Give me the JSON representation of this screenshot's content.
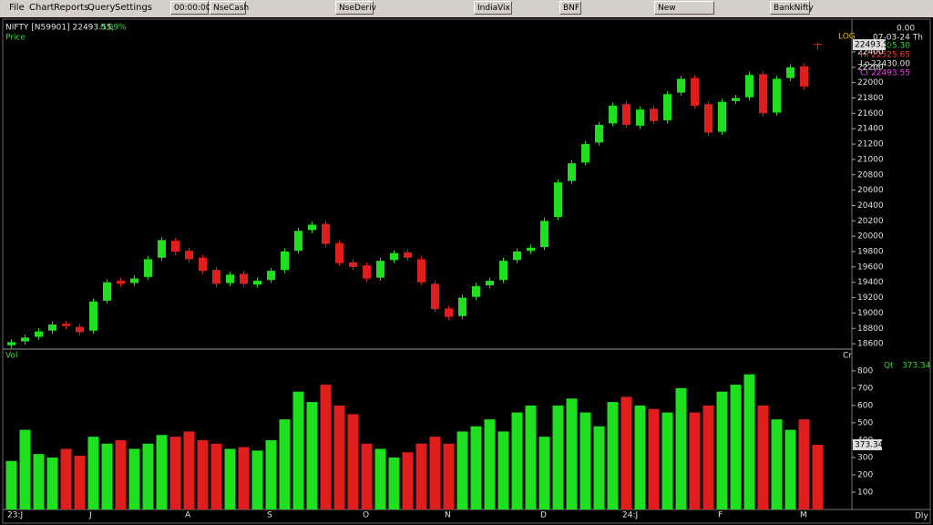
{
  "menu": [
    "File",
    "Chart",
    "Reports",
    "Query",
    "Settings"
  ],
  "toolbar": [
    "00:00:00",
    "NseCash",
    "NseDeriv",
    "IndiaVix",
    "BNF",
    "New High/Low",
    "BankNifty"
  ],
  "chart_data": {
    "type": "candlestick",
    "symbol_text": "NIFTY [N59901] 22493.55,",
    "change_text": "0.09%",
    "price_label": "Price",
    "scale_label": "LOG",
    "volume_label": "Vol",
    "volume_unit": "Cr",
    "period_label": "Dly",
    "info": {
      "top": "0.00",
      "date": "07-03-24 Th",
      "rows": [
        {
          "label": "Op",
          "value": "22505.30",
          "color": "#33dd33"
        },
        {
          "label": "Hi",
          "value": "22525.65",
          "color": "#ff3333"
        },
        {
          "label": "Lo",
          "value": "22430.00",
          "color": "#e0e0e0"
        },
        {
          "label": "Cl",
          "value": "22493.55",
          "color": "#ff33ff"
        }
      ]
    },
    "last_price_label": "22493.55",
    "qt_label": "Qt",
    "last_volume_label": "373.34",
    "up_color": "#1ee01e",
    "down_color": "#e01e1e",
    "categories": [
      "23:J",
      null,
      null,
      null,
      null,
      null,
      "J",
      null,
      null,
      null,
      null,
      null,
      null,
      "A",
      null,
      null,
      null,
      null,
      null,
      "S",
      null,
      null,
      null,
      null,
      null,
      null,
      "O",
      null,
      null,
      null,
      null,
      null,
      "N",
      null,
      null,
      null,
      null,
      null,
      null,
      "D",
      null,
      null,
      null,
      null,
      null,
      "24:J",
      null,
      null,
      null,
      null,
      null,
      null,
      "F",
      null,
      null,
      null,
      null,
      null,
      "M",
      null
    ],
    "open": [
      18580,
      18630,
      18690,
      18770,
      18860,
      18820,
      18770,
      19160,
      19420,
      19390,
      19470,
      19720,
      19940,
      19810,
      19720,
      19560,
      19390,
      19510,
      19370,
      19430,
      19560,
      19810,
      20080,
      20160,
      19910,
      19660,
      19620,
      19460,
      19690,
      19790,
      19700,
      19380,
      19060,
      18960,
      19210,
      19360,
      19430,
      19690,
      19810,
      19860,
      20250,
      20720,
      20960,
      21220,
      21470,
      21720,
      21440,
      21660,
      21510,
      21870,
      22060,
      21720,
      21360,
      21760,
      21810,
      22110,
      21610,
      22060,
      22210,
      22505.3
    ],
    "high": [
      18660,
      18720,
      18800,
      18890,
      18900,
      18860,
      19190,
      19440,
      19460,
      19490,
      19740,
      19990,
      19980,
      19850,
      19760,
      19600,
      19540,
      19550,
      19460,
      19590,
      19840,
      20110,
      20190,
      20200,
      19950,
      19700,
      19660,
      19720,
      19820,
      19830,
      19740,
      19420,
      19100,
      19240,
      19390,
      19460,
      19720,
      19840,
      19890,
      20240,
      20740,
      20990,
      21240,
      21490,
      21740,
      21760,
      21690,
      21700,
      21890,
      22090,
      22100,
      21760,
      21790,
      21840,
      22140,
      22150,
      22090,
      22240,
      22250,
      22525.65
    ],
    "low": [
      18540,
      18590,
      18650,
      18730,
      18790,
      18710,
      18730,
      19120,
      19340,
      19350,
      19430,
      19680,
      19760,
      19660,
      19510,
      19340,
      19350,
      19340,
      19330,
      19390,
      19520,
      19770,
      20040,
      19860,
      19610,
      19560,
      19410,
      19420,
      19650,
      19680,
      19360,
      19010,
      18910,
      18920,
      19170,
      19320,
      19390,
      19650,
      19770,
      19820,
      20210,
      20680,
      20920,
      21180,
      21430,
      21410,
      21400,
      21460,
      21470,
      21830,
      21660,
      21310,
      21320,
      21720,
      21770,
      21560,
      21570,
      22020,
      21910,
      22430
    ],
    "close": [
      18620,
      18680,
      18760,
      18850,
      18830,
      18750,
      19150,
      19400,
      19380,
      19450,
      19700,
      19950,
      19800,
      19700,
      19550,
      19380,
      19500,
      19380,
      19420,
      19550,
      19800,
      20070,
      20150,
      19900,
      19650,
      19600,
      19450,
      19680,
      19780,
      19720,
      19400,
      19050,
      18950,
      19200,
      19350,
      19420,
      19680,
      19800,
      19850,
      20200,
      20700,
      20950,
      21200,
      21450,
      21700,
      21450,
      21650,
      21500,
      21850,
      22050,
      21700,
      21350,
      21750,
      21800,
      22100,
      21600,
      22050,
      22200,
      21950,
      22493.55
    ],
    "volume": [
      280,
      460,
      320,
      300,
      350,
      310,
      420,
      380,
      400,
      350,
      380,
      430,
      420,
      450,
      400,
      380,
      350,
      360,
      340,
      400,
      520,
      680,
      620,
      720,
      600,
      550,
      380,
      350,
      300,
      330,
      380,
      420,
      380,
      450,
      480,
      520,
      450,
      560,
      600,
      420,
      600,
      640,
      560,
      480,
      620,
      650,
      600,
      580,
      560,
      700,
      560,
      600,
      680,
      720,
      780,
      600,
      520,
      460,
      520,
      373.34
    ],
    "ylim": [
      18530,
      22815
    ],
    "yticks": [
      18600,
      18800,
      19000,
      19200,
      19400,
      19600,
      19800,
      20000,
      20200,
      20400,
      20600,
      20800,
      21000,
      21200,
      21400,
      21600,
      21800,
      22000,
      22200,
      22400
    ],
    "vlim": [
      0,
      915
    ],
    "vticks": [
      100,
      200,
      300,
      400,
      500,
      600,
      700,
      800
    ]
  }
}
